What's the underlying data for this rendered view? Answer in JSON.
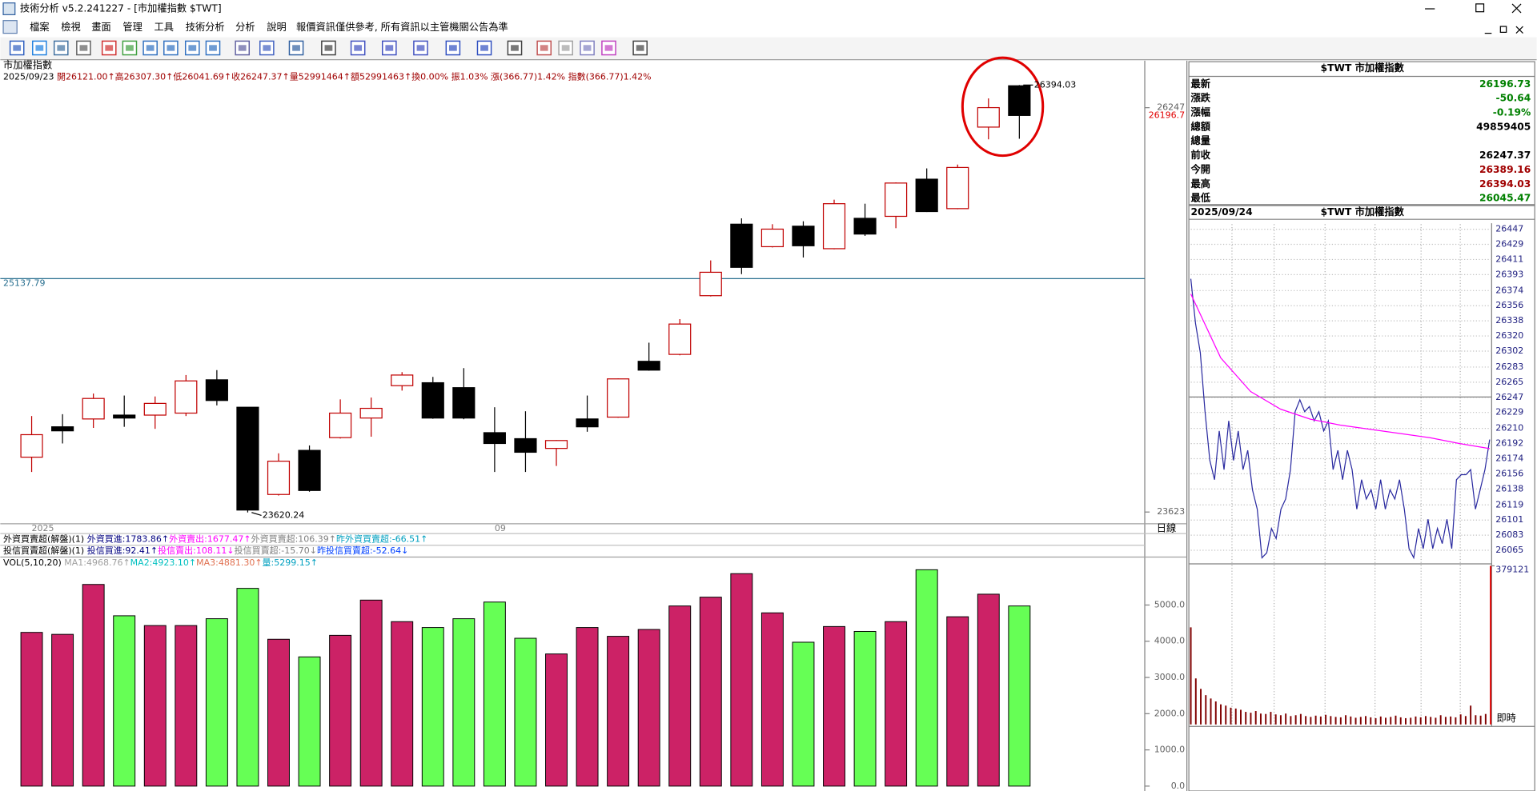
{
  "window": {
    "title": "技術分析 v5.2.241227 - [市加權指數 $TWT]"
  },
  "menu": [
    "檔案",
    "檢視",
    "畫面",
    "管理",
    "工具",
    "技術分析",
    "分析",
    "說明"
  ],
  "notice": "報價資訊僅供參考, 所有資訊以主管機關公告為準",
  "chart_header": {
    "name": "市加權指數",
    "date": "2025/09/23",
    "info": "開26121.00↑高26307.30↑低26041.69↑收26247.37↑量52991464↑額52991463↑換0.00% 振1.03% 漲(366.77)1.42% 指數(366.77)1.42%"
  },
  "period": "日線",
  "indicators": [
    [
      {
        "text": "外資買賣超(解盤)(1) ",
        "color": "#000000"
      },
      {
        "text": "外資買進:1783.86↑",
        "color": "#000080"
      },
      {
        "text": "外資賣出:1677.47↑",
        "color": "#ff00ff"
      },
      {
        "text": "外資買賣超:106.39↑",
        "color": "#808080"
      },
      {
        "text": "昨外資買賣超:-66.51↑",
        "color": "#00a0c0"
      }
    ],
    [
      {
        "text": "投信買賣超(解盤)(1) ",
        "color": "#000000"
      },
      {
        "text": "投信買進:92.41↑",
        "color": "#000080"
      },
      {
        "text": "投信賣出:108.11↓",
        "color": "#ff00ff"
      },
      {
        "text": "投信買賣超:-15.70↓",
        "color": "#808080"
      },
      {
        "text": "昨投信買賣超:-52.64↓",
        "color": "#0040ff"
      }
    ],
    [
      {
        "text": "VOL(5,10,20) ",
        "color": "#000000"
      },
      {
        "text": "MA1:4968.76↑",
        "color": "#a0a0a0"
      },
      {
        "text": "MA2:4923.10↑",
        "color": "#00c0c0"
      },
      {
        "text": "MA3:4881.30↑",
        "color": "#e07050"
      },
      {
        "text": "量:5299.15↑",
        "color": "#00a0c0"
      }
    ]
  ],
  "chart_data": [
    {
      "type": "candlestick",
      "categories": [
        "2025",
        null,
        null,
        null,
        null,
        null,
        null,
        null,
        null,
        null,
        null,
        null,
        null,
        null,
        null,
        "09",
        null,
        null,
        null,
        null,
        null,
        null,
        null,
        null,
        null,
        null,
        null,
        null,
        null,
        null,
        null,
        null,
        null
      ],
      "open": [
        23979,
        24176,
        24227,
        24252,
        24252,
        24265,
        24481,
        24303,
        23737,
        24023,
        24106,
        24233,
        24443,
        24462,
        24430,
        24138,
        24099,
        24036,
        24227,
        24239,
        24601,
        24646,
        25027,
        25491,
        25345,
        25478,
        25332,
        25529,
        25542,
        25783,
        25592,
        26121.0,
        26389.16
      ],
      "high": [
        24246,
        24258,
        24392,
        24379,
        24373,
        24512,
        24544,
        24303,
        24004,
        24055,
        24354,
        24366,
        24531,
        24500,
        24557,
        24303,
        24277,
        24090,
        24379,
        24490,
        24722,
        24875,
        25256,
        25529,
        25491,
        25510,
        25650,
        25624,
        25762,
        25853,
        25878,
        26307.3,
        26394.03
      ],
      "low": [
        23883,
        24068,
        24169,
        24176,
        24163,
        24246,
        24315,
        23620.24,
        23730,
        23755,
        24100,
        24112,
        24411,
        24228,
        24225,
        23883,
        23883,
        23922,
        24144,
        24235,
        24540,
        24640,
        25022,
        25167,
        25340,
        25275,
        25328,
        25415,
        25465,
        25570,
        25588,
        26041.69,
        26045.47
      ],
      "close": [
        24125,
        24150,
        24360,
        24233,
        24328,
        24474,
        24347,
        23636,
        23953,
        23763,
        24265,
        24296,
        24512,
        24233,
        24233,
        24068,
        24011,
        24087,
        24176,
        24487,
        24544,
        24843,
        25179,
        25211,
        25459,
        25351,
        25624,
        25427,
        25758,
        25573,
        25859,
        26247.37,
        26196.73
      ],
      "up_color": "#c00000",
      "down_color": "#000000",
      "ylim": [
        23547,
        26552
      ],
      "yticks": [
        23623,
        26247
      ],
      "reference_line": 25137.79,
      "last_price": 26196.7,
      "last_price_color": "#e00000"
    },
    {
      "type": "bar",
      "values": [
        4244,
        4190,
        5568,
        4703,
        4433,
        4433,
        4622,
        5460,
        4055,
        3568,
        4163,
        5136,
        4541,
        4379,
        4622,
        5082,
        4082,
        3649,
        4379,
        4136,
        4325,
        4974,
        5217,
        5866,
        4784,
        3973,
        4406,
        4271,
        4541,
        5974,
        4676,
        5299.15,
        4974
      ],
      "colors": [
        "#cc2266",
        "#cc2266",
        "#cc2266",
        "#66ff55",
        "#cc2266",
        "#cc2266",
        "#66ff55",
        "#66ff55",
        "#cc2266",
        "#66ff55",
        "#cc2266",
        "#cc2266",
        "#cc2266",
        "#66ff55",
        "#66ff55",
        "#66ff55",
        "#66ff55",
        "#cc2266",
        "#cc2266",
        "#cc2266",
        "#cc2266",
        "#cc2266",
        "#cc2266",
        "#cc2266",
        "#cc2266",
        "#66ff55",
        "#cc2266",
        "#66ff55",
        "#cc2266",
        "#66ff55",
        "#cc2266",
        "#cc2266",
        "#66ff55"
      ],
      "ylim": [
        -135,
        6298
      ],
      "yticks": [
        {
          "value": 0,
          "label": "0.0"
        },
        {
          "value": 1000,
          "label": "1000.0"
        },
        {
          "value": 2000,
          "label": "2000.0"
        },
        {
          "value": 3000,
          "label": "3000.0"
        },
        {
          "value": 4000,
          "label": "4000.0"
        },
        {
          "value": 5000,
          "label": "5000.0"
        }
      ]
    },
    {
      "type": "line",
      "series": [
        {
          "color": "#2a2aa0",
          "values": [
            26388,
            26335,
            26300,
            26230,
            26172,
            26149,
            26207,
            26161,
            26219,
            26172,
            26207,
            26161,
            26184,
            26137,
            26114,
            26056,
            26062,
            26091,
            26079,
            26114,
            26126,
            26161,
            26230,
            26244,
            26230,
            26236,
            26219,
            26230,
            26207,
            26219,
            26161,
            26184,
            26149,
            26184,
            26161,
            26114,
            26149,
            26126,
            26137,
            26114,
            26149,
            26114,
            26137,
            26126,
            26149,
            26114,
            26067,
            26056,
            26091,
            26067,
            26102,
            26067,
            26091,
            26073,
            26102,
            26067,
            26149,
            26155,
            26155,
            26161,
            26114,
            26137,
            26161,
            26196.73
          ]
        },
        {
          "color": "#ff00ff",
          "values": [
            26370,
            26294,
            26254,
            26233,
            26221,
            26214,
            26209,
            26204,
            26199,
            26192,
            26186
          ]
        }
      ],
      "ylim": [
        26050,
        26453
      ],
      "yticks": [
        26447,
        26429,
        26411,
        26393,
        26374,
        26356,
        26338,
        26320,
        26302,
        26283,
        26265,
        26247,
        26229,
        26210,
        26192,
        26174,
        26156,
        26138,
        26119,
        26101,
        26083,
        26065
      ],
      "grid": true,
      "prev_close": 26247.37
    },
    {
      "type": "bar",
      "values": [
        232000,
        110000,
        85000,
        70000,
        62000,
        55000,
        48000,
        45000,
        40000,
        38000,
        35000,
        30000,
        28000,
        32000,
        26000,
        25000,
        30000,
        24000,
        22000,
        26000,
        20000,
        22000,
        25000,
        20000,
        18000,
        21000,
        19000,
        23000,
        20000,
        18000,
        17000,
        22000,
        19000,
        16000,
        18000,
        20000,
        17000,
        15000,
        19000,
        16000,
        18000,
        21000,
        17000,
        15000,
        16000,
        19000,
        17000,
        20000,
        18000,
        16000,
        22000,
        18000,
        19000,
        17000,
        24000,
        20000,
        45000,
        22000,
        21000,
        25000,
        379121
      ],
      "color": "#800000",
      "ylim": [
        0,
        379121
      ],
      "yticks": [
        379121
      ],
      "x_label": "即時"
    }
  ],
  "quote": {
    "title": "$TWT 市加權指數",
    "rows": [
      {
        "label": "最新",
        "value": "26196.73",
        "color": "#008000"
      },
      {
        "label": "漲跌",
        "value": "-50.64",
        "color": "#008000"
      },
      {
        "label": "漲幅",
        "value": "-0.19%",
        "color": "#008000"
      },
      {
        "label": "總額",
        "value": "49859405",
        "color": "#000000"
      },
      {
        "label": "總量"
      },
      {
        "label": "前收",
        "value": "26247.37",
        "color": "#000000"
      },
      {
        "label": "今開",
        "value": "26389.16",
        "color": "#a00000"
      },
      {
        "label": "最高",
        "value": "26394.03",
        "color": "#a00000"
      },
      {
        "label": "最低",
        "value": "26045.47",
        "color": "#008000"
      }
    ]
  },
  "intraday_header": {
    "date": "2025/09/24",
    "title": "$TWT 市加權指數"
  }
}
